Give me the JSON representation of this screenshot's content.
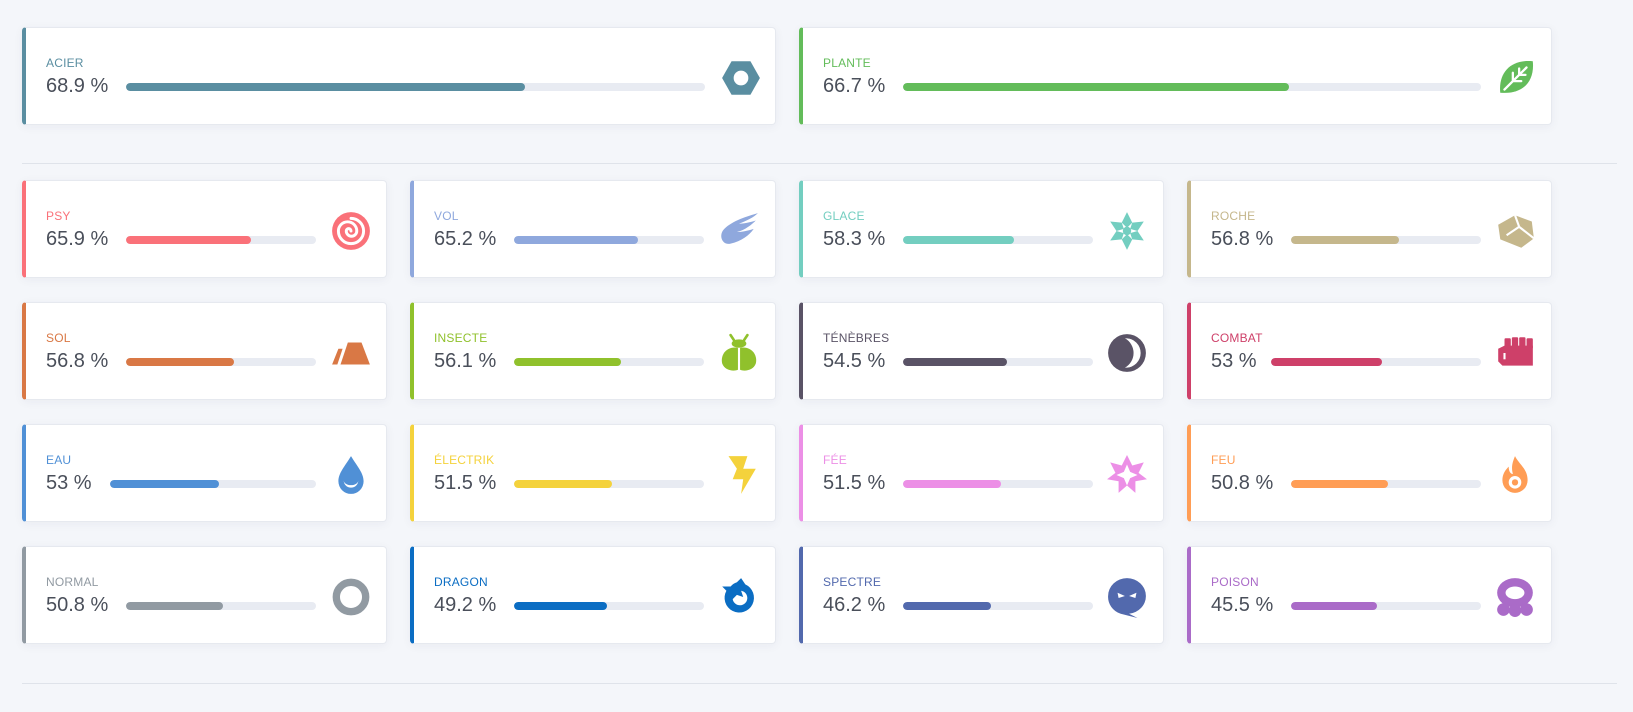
{
  "top_types": [
    {
      "label": "ACIER",
      "value_text": "68.9 %",
      "value": 68.9,
      "color": "#5a8ea1",
      "icon": "steel-hexagon-icon"
    },
    {
      "label": "PLANTE",
      "value_text": "66.7 %",
      "value": 66.7,
      "color": "#63bc5a",
      "icon": "leaf-icon"
    }
  ],
  "types": [
    {
      "label": "PSY",
      "value_text": "65.9 %",
      "value": 65.9,
      "color": "#fa7179",
      "icon": "spiral-icon"
    },
    {
      "label": "VOL",
      "value_text": "65.2 %",
      "value": 65.2,
      "color": "#8fa8dd",
      "icon": "wing-icon"
    },
    {
      "label": "GLACE",
      "value_text": "58.3 %",
      "value": 58.3,
      "color": "#73cec0",
      "icon": "snowflake-icon"
    },
    {
      "label": "ROCHE",
      "value_text": "56.8 %",
      "value": 56.8,
      "color": "#c5b78c",
      "icon": "rock-icon"
    },
    {
      "label": "SOL",
      "value_text": "56.8 %",
      "value": 56.8,
      "color": "#d97845",
      "icon": "ground-icon"
    },
    {
      "label": "INSECTE",
      "value_text": "56.1 %",
      "value": 56.1,
      "color": "#90c12c",
      "icon": "bug-icon"
    },
    {
      "label": "TÉNÈBRES",
      "value_text": "54.5 %",
      "value": 54.5,
      "color": "#5a5366",
      "icon": "moon-icon"
    },
    {
      "label": "COMBAT",
      "value_text": "53 %",
      "value": 53,
      "color": "#ce4069",
      "icon": "fist-icon"
    },
    {
      "label": "EAU",
      "value_text": "53 %",
      "value": 53,
      "color": "#5090d6",
      "icon": "water-drop-icon"
    },
    {
      "label": "ÉLECTRIK",
      "value_text": "51.5 %",
      "value": 51.5,
      "color": "#f4d23c",
      "icon": "lightning-icon"
    },
    {
      "label": "FÉE",
      "value_text": "51.5 %",
      "value": 51.5,
      "color": "#ec8fe6",
      "icon": "fairy-star-icon"
    },
    {
      "label": "FEU",
      "value_text": "50.8 %",
      "value": 50.8,
      "color": "#ff9d55",
      "icon": "flame-icon"
    },
    {
      "label": "NORMAL",
      "value_text": "50.8 %",
      "value": 50.8,
      "color": "#919aa2",
      "icon": "ring-icon"
    },
    {
      "label": "DRAGON",
      "value_text": "49.2 %",
      "value": 49.2,
      "color": "#0b6dc3",
      "icon": "dragon-icon"
    },
    {
      "label": "SPECTRE",
      "value_text": "46.2 %",
      "value": 46.2,
      "color": "#5269ad",
      "icon": "ghost-icon"
    },
    {
      "label": "POISON",
      "value_text": "45.5 %",
      "value": 45.5,
      "color": "#aa6bc8",
      "icon": "poison-icon"
    }
  ]
}
